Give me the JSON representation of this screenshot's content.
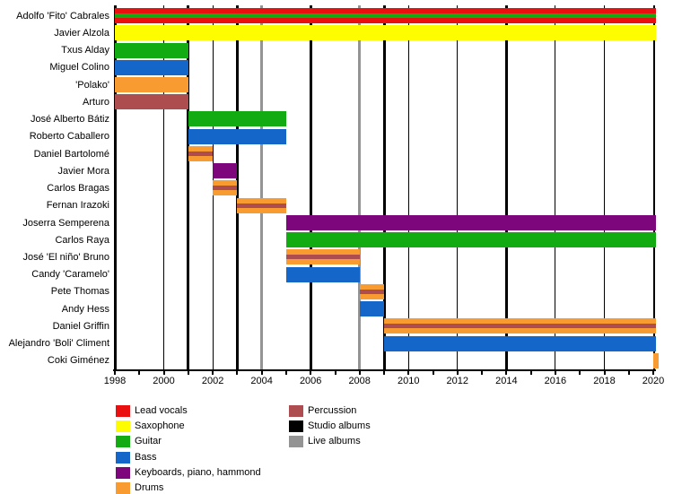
{
  "chart_data": {
    "type": "timeline",
    "title": "",
    "x_axis": {
      "min": 1998,
      "max": 2020,
      "tick_step": 1,
      "label_step": 2,
      "tick_labels": [
        "1998",
        "2000",
        "2002",
        "2004",
        "2006",
        "2008",
        "2010",
        "2012",
        "2014",
        "2016",
        "2018",
        "2020"
      ]
    },
    "members": [
      {
        "name": "Adolfo 'Fito' Cabrales",
        "start": 1998,
        "end": 2020,
        "roles": [
          "lead_vocals",
          "guitar"
        ]
      },
      {
        "name": "Javier Alzola",
        "start": 1998,
        "end": 2020,
        "roles": [
          "saxophone"
        ]
      },
      {
        "name": "Txus Alday",
        "start": 1998,
        "end": 2001,
        "roles": [
          "guitar"
        ]
      },
      {
        "name": "Miguel Colino",
        "start": 1998,
        "end": 2001,
        "roles": [
          "bass"
        ]
      },
      {
        "name": "'Polako'",
        "start": 1998,
        "end": 2001,
        "roles": [
          "drums"
        ]
      },
      {
        "name": "Arturo",
        "start": 1998,
        "end": 2001,
        "roles": [
          "percussion"
        ]
      },
      {
        "name": "José Alberto Bátiz",
        "start": 2001,
        "end": 2005,
        "roles": [
          "guitar"
        ]
      },
      {
        "name": "Roberto Caballero",
        "start": 2001,
        "end": 2005,
        "roles": [
          "bass"
        ]
      },
      {
        "name": "Daniel Bartolomé",
        "start": 2001,
        "end": 2002,
        "roles": [
          "drums",
          "percussion"
        ]
      },
      {
        "name": "Javier Mora",
        "start": 2002,
        "end": 2003,
        "roles": [
          "keyboards"
        ]
      },
      {
        "name": "Carlos Bragas",
        "start": 2002,
        "end": 2003,
        "roles": [
          "drums",
          "percussion"
        ]
      },
      {
        "name": "Fernan Irazoki",
        "start": 2003,
        "end": 2005,
        "roles": [
          "drums",
          "percussion"
        ]
      },
      {
        "name": "Joserra Semperena",
        "start": 2005,
        "end": 2020,
        "roles": [
          "keyboards"
        ]
      },
      {
        "name": "Carlos Raya",
        "start": 2005,
        "end": 2020,
        "roles": [
          "guitar"
        ]
      },
      {
        "name": "José 'El niño' Bruno",
        "start": 2005,
        "end": 2008,
        "roles": [
          "drums",
          "percussion"
        ]
      },
      {
        "name": "Candy 'Caramelo'",
        "start": 2005,
        "end": 2008,
        "roles": [
          "bass"
        ]
      },
      {
        "name": "Pete Thomas",
        "start": 2008,
        "end": 2009,
        "roles": [
          "drums",
          "percussion"
        ]
      },
      {
        "name": "Andy Hess",
        "start": 2008,
        "end": 2009,
        "roles": [
          "bass"
        ]
      },
      {
        "name": "Daniel Griffin",
        "start": 2009,
        "end": 2020,
        "roles": [
          "drums",
          "percussion"
        ]
      },
      {
        "name": "Alejandro 'Boli' Climent",
        "start": 2009,
        "end": 2020,
        "roles": [
          "bass"
        ]
      },
      {
        "name": "Coki Giménez",
        "start": 2020,
        "end": 2020,
        "roles": [
          "drums"
        ]
      }
    ],
    "studio_album_years": [
      1998,
      2001,
      2003,
      2006,
      2009,
      2014
    ],
    "live_album_years": [
      2004,
      2008
    ],
    "minor_gridline_years": [
      2000,
      2002,
      2010,
      2012,
      2016,
      2018
    ],
    "legend": {
      "column1": [
        {
          "label": "Lead vocals",
          "role": "lead_vocals"
        },
        {
          "label": "Saxophone",
          "role": "saxophone"
        },
        {
          "label": "Guitar",
          "role": "guitar"
        },
        {
          "label": "Bass",
          "role": "bass"
        },
        {
          "label": "Keyboards, piano, hammond",
          "role": "keyboards"
        },
        {
          "label": "Drums",
          "role": "drums"
        }
      ],
      "column2": [
        {
          "label": "Percussion",
          "role": "percussion"
        },
        {
          "label": "Studio albums",
          "role": "studio_albums"
        },
        {
          "label": "Live albums",
          "role": "live_albums"
        }
      ]
    }
  },
  "colors": {
    "lead_vocals": "#ea1010",
    "saxophone": "#fdfd00",
    "guitar": "#12ab12",
    "bass": "#1467c8",
    "keyboards": "#7d067d",
    "drums": "#f89b30",
    "percussion": "#ad4d4f",
    "studio_albums": "#000000",
    "live_albums": "#949494",
    "axis": "#000000",
    "minor_gridline": "#000000"
  },
  "layout_hints": {
    "grid": "vertical lines only",
    "legend_position": "bottom",
    "bar_order": "top to bottom in member order"
  }
}
